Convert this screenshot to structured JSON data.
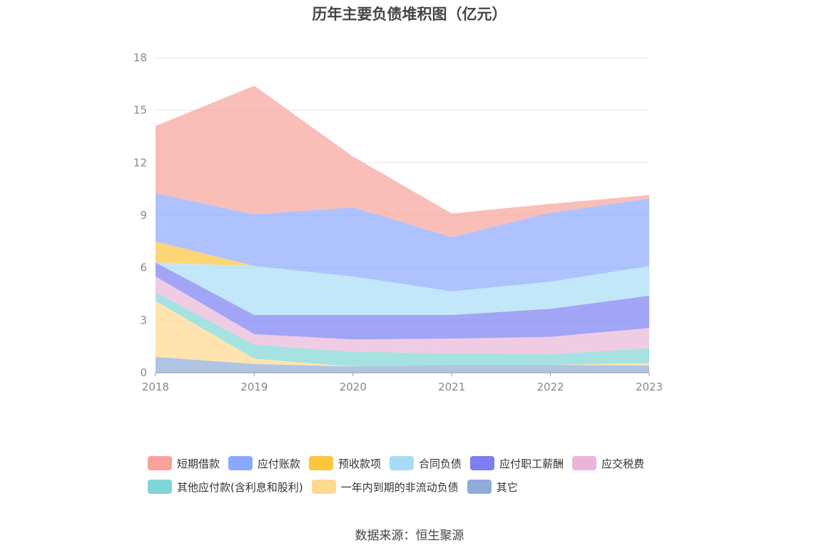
{
  "chart_data": {
    "type": "area",
    "stacked": true,
    "title": "历年主要负债堆积图（亿元）",
    "x": [
      "2018",
      "2019",
      "2020",
      "2021",
      "2022",
      "2023"
    ],
    "ylim": [
      0,
      18
    ],
    "yticks": [
      "0",
      "3",
      "6",
      "9",
      "12",
      "15",
      "18"
    ],
    "grid": true,
    "legend_position": "bottom",
    "series": [
      {
        "name": "其它",
        "color": "#8eabd9",
        "values": [
          0.9,
          0.5,
          0.35,
          0.45,
          0.45,
          0.4
        ]
      },
      {
        "name": "一年内到期的非流动负债",
        "color": "#ffd98e",
        "values": [
          3.2,
          0.3,
          0.0,
          0.0,
          0.0,
          0.15
        ]
      },
      {
        "name": "其他应付款(含利息和股利)",
        "color": "#80d6d4",
        "values": [
          0.5,
          0.8,
          0.85,
          0.65,
          0.6,
          0.85
        ]
      },
      {
        "name": "应交税费",
        "color": "#e9b6d9",
        "values": [
          0.9,
          0.6,
          0.7,
          0.85,
          1.0,
          1.15
        ]
      },
      {
        "name": "应付职工薪酬",
        "color": "#7b7ff2",
        "values": [
          0.8,
          1.1,
          1.4,
          1.35,
          1.6,
          1.85
        ]
      },
      {
        "name": "合同负债",
        "color": "#a6ddf5",
        "values": [
          0.0,
          2.8,
          2.2,
          1.35,
          1.55,
          1.7
        ]
      },
      {
        "name": "预收款项",
        "color": "#ffc53d",
        "values": [
          1.2,
          0.0,
          0.0,
          0.0,
          0.0,
          0.0
        ]
      },
      {
        "name": "应付账款",
        "color": "#8aa8ff",
        "values": [
          2.75,
          2.95,
          3.95,
          3.1,
          3.95,
          3.85
        ]
      },
      {
        "name": "短期借款",
        "color": "#f8a39a",
        "values": [
          3.85,
          7.35,
          2.9,
          1.35,
          0.5,
          0.2
        ]
      }
    ]
  },
  "legend": {
    "items": [
      {
        "label": "短期借款",
        "color": "#f8a39a"
      },
      {
        "label": "应付账款",
        "color": "#8aa8ff"
      },
      {
        "label": "预收款项",
        "color": "#ffc53d"
      },
      {
        "label": "合同负债",
        "color": "#a6ddf5"
      },
      {
        "label": "应付职工薪酬",
        "color": "#7b7ff2"
      },
      {
        "label": "应交税费",
        "color": "#e9b6d9"
      },
      {
        "label": "其他应付款(含利息和股利)",
        "color": "#80d6d4"
      },
      {
        "label": "一年内到期的非流动负债",
        "color": "#ffd98e"
      },
      {
        "label": "其它",
        "color": "#8eabd9"
      }
    ]
  },
  "source": "数据来源：恒生聚源"
}
